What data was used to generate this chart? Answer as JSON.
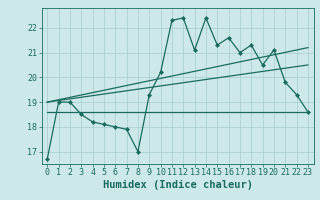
{
  "x": [
    0,
    1,
    2,
    3,
    4,
    5,
    6,
    7,
    8,
    9,
    10,
    11,
    12,
    13,
    14,
    15,
    16,
    17,
    18,
    19,
    20,
    21,
    22,
    23
  ],
  "y_main": [
    16.7,
    19.0,
    19.0,
    18.5,
    18.2,
    18.1,
    18.0,
    17.9,
    17.0,
    19.3,
    20.2,
    22.3,
    22.4,
    21.1,
    22.4,
    21.3,
    21.6,
    21.0,
    21.3,
    20.5,
    21.1,
    19.8,
    19.3,
    18.6
  ],
  "line1_x": [
    0,
    23
  ],
  "line1_y": [
    18.6,
    18.6
  ],
  "line2_x": [
    0,
    20
  ],
  "line2_y": [
    19.0,
    20.4
  ],
  "line3_x": [
    0,
    20
  ],
  "line3_y": [
    19.0,
    21.1
  ],
  "xlabel": "Humidex (Indice chaleur)",
  "ylabel": "",
  "ylim": [
    16.5,
    22.8
  ],
  "xlim": [
    -0.5,
    23.5
  ],
  "yticks": [
    17,
    18,
    19,
    20,
    21,
    22
  ],
  "xticks": [
    0,
    1,
    2,
    3,
    4,
    5,
    6,
    7,
    8,
    9,
    10,
    11,
    12,
    13,
    14,
    15,
    16,
    17,
    18,
    19,
    20,
    21,
    22,
    23
  ],
  "line_color": "#1a6b5e",
  "bg_color": "#cce8e8",
  "grid_color": "#a8cccc",
  "tick_fontsize": 6.0,
  "xlabel_fontsize": 7.5
}
